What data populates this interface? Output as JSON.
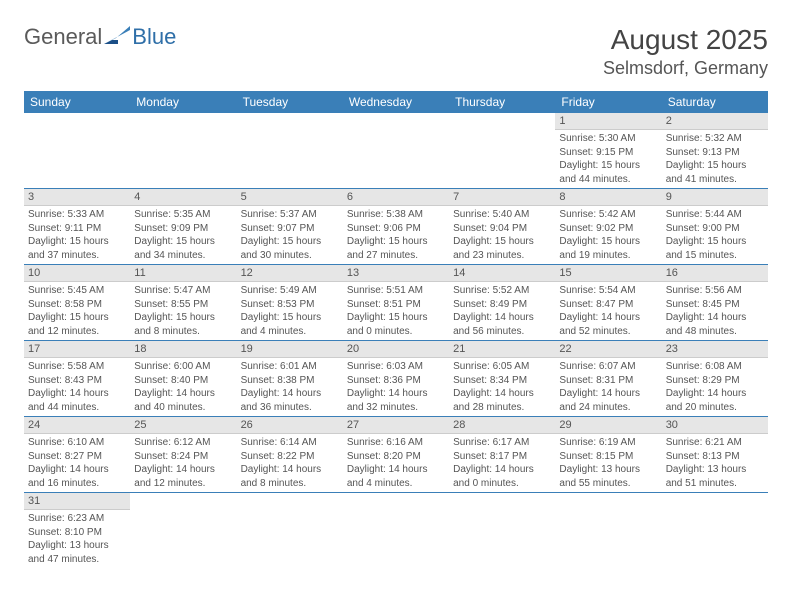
{
  "logo": {
    "general": "General",
    "blue": "Blue"
  },
  "title": "August 2025",
  "location": "Selmsdorf, Germany",
  "colors": {
    "header_bg": "#3a7fb8",
    "header_text": "#ffffff",
    "daynum_bg": "#e6e6e6",
    "text": "#555555",
    "row_border": "#3a7fb8",
    "logo_gray": "#5a5a5a",
    "logo_blue": "#2f6fa8"
  },
  "font": {
    "family": "Arial",
    "day_header_pt": 12,
    "cell_pt": 10,
    "title_pt": 28,
    "location_pt": 18
  },
  "weekdays": [
    "Sunday",
    "Monday",
    "Tuesday",
    "Wednesday",
    "Thursday",
    "Friday",
    "Saturday"
  ],
  "grid": [
    [
      null,
      null,
      null,
      null,
      null,
      {
        "n": "1",
        "sr": "5:30 AM",
        "ss": "9:15 PM",
        "dl": "15 hours and 44 minutes."
      },
      {
        "n": "2",
        "sr": "5:32 AM",
        "ss": "9:13 PM",
        "dl": "15 hours and 41 minutes."
      }
    ],
    [
      {
        "n": "3",
        "sr": "5:33 AM",
        "ss": "9:11 PM",
        "dl": "15 hours and 37 minutes."
      },
      {
        "n": "4",
        "sr": "5:35 AM",
        "ss": "9:09 PM",
        "dl": "15 hours and 34 minutes."
      },
      {
        "n": "5",
        "sr": "5:37 AM",
        "ss": "9:07 PM",
        "dl": "15 hours and 30 minutes."
      },
      {
        "n": "6",
        "sr": "5:38 AM",
        "ss": "9:06 PM",
        "dl": "15 hours and 27 minutes."
      },
      {
        "n": "7",
        "sr": "5:40 AM",
        "ss": "9:04 PM",
        "dl": "15 hours and 23 minutes."
      },
      {
        "n": "8",
        "sr": "5:42 AM",
        "ss": "9:02 PM",
        "dl": "15 hours and 19 minutes."
      },
      {
        "n": "9",
        "sr": "5:44 AM",
        "ss": "9:00 PM",
        "dl": "15 hours and 15 minutes."
      }
    ],
    [
      {
        "n": "10",
        "sr": "5:45 AM",
        "ss": "8:58 PM",
        "dl": "15 hours and 12 minutes."
      },
      {
        "n": "11",
        "sr": "5:47 AM",
        "ss": "8:55 PM",
        "dl": "15 hours and 8 minutes."
      },
      {
        "n": "12",
        "sr": "5:49 AM",
        "ss": "8:53 PM",
        "dl": "15 hours and 4 minutes."
      },
      {
        "n": "13",
        "sr": "5:51 AM",
        "ss": "8:51 PM",
        "dl": "15 hours and 0 minutes."
      },
      {
        "n": "14",
        "sr": "5:52 AM",
        "ss": "8:49 PM",
        "dl": "14 hours and 56 minutes."
      },
      {
        "n": "15",
        "sr": "5:54 AM",
        "ss": "8:47 PM",
        "dl": "14 hours and 52 minutes."
      },
      {
        "n": "16",
        "sr": "5:56 AM",
        "ss": "8:45 PM",
        "dl": "14 hours and 48 minutes."
      }
    ],
    [
      {
        "n": "17",
        "sr": "5:58 AM",
        "ss": "8:43 PM",
        "dl": "14 hours and 44 minutes."
      },
      {
        "n": "18",
        "sr": "6:00 AM",
        "ss": "8:40 PM",
        "dl": "14 hours and 40 minutes."
      },
      {
        "n": "19",
        "sr": "6:01 AM",
        "ss": "8:38 PM",
        "dl": "14 hours and 36 minutes."
      },
      {
        "n": "20",
        "sr": "6:03 AM",
        "ss": "8:36 PM",
        "dl": "14 hours and 32 minutes."
      },
      {
        "n": "21",
        "sr": "6:05 AM",
        "ss": "8:34 PM",
        "dl": "14 hours and 28 minutes."
      },
      {
        "n": "22",
        "sr": "6:07 AM",
        "ss": "8:31 PM",
        "dl": "14 hours and 24 minutes."
      },
      {
        "n": "23",
        "sr": "6:08 AM",
        "ss": "8:29 PM",
        "dl": "14 hours and 20 minutes."
      }
    ],
    [
      {
        "n": "24",
        "sr": "6:10 AM",
        "ss": "8:27 PM",
        "dl": "14 hours and 16 minutes."
      },
      {
        "n": "25",
        "sr": "6:12 AM",
        "ss": "8:24 PM",
        "dl": "14 hours and 12 minutes."
      },
      {
        "n": "26",
        "sr": "6:14 AM",
        "ss": "8:22 PM",
        "dl": "14 hours and 8 minutes."
      },
      {
        "n": "27",
        "sr": "6:16 AM",
        "ss": "8:20 PM",
        "dl": "14 hours and 4 minutes."
      },
      {
        "n": "28",
        "sr": "6:17 AM",
        "ss": "8:17 PM",
        "dl": "14 hours and 0 minutes."
      },
      {
        "n": "29",
        "sr": "6:19 AM",
        "ss": "8:15 PM",
        "dl": "13 hours and 55 minutes."
      },
      {
        "n": "30",
        "sr": "6:21 AM",
        "ss": "8:13 PM",
        "dl": "13 hours and 51 minutes."
      }
    ],
    [
      {
        "n": "31",
        "sr": "6:23 AM",
        "ss": "8:10 PM",
        "dl": "13 hours and 47 minutes."
      },
      null,
      null,
      null,
      null,
      null,
      null
    ]
  ],
  "labels": {
    "sunrise": "Sunrise: ",
    "sunset": "Sunset: ",
    "daylight": "Daylight: "
  }
}
